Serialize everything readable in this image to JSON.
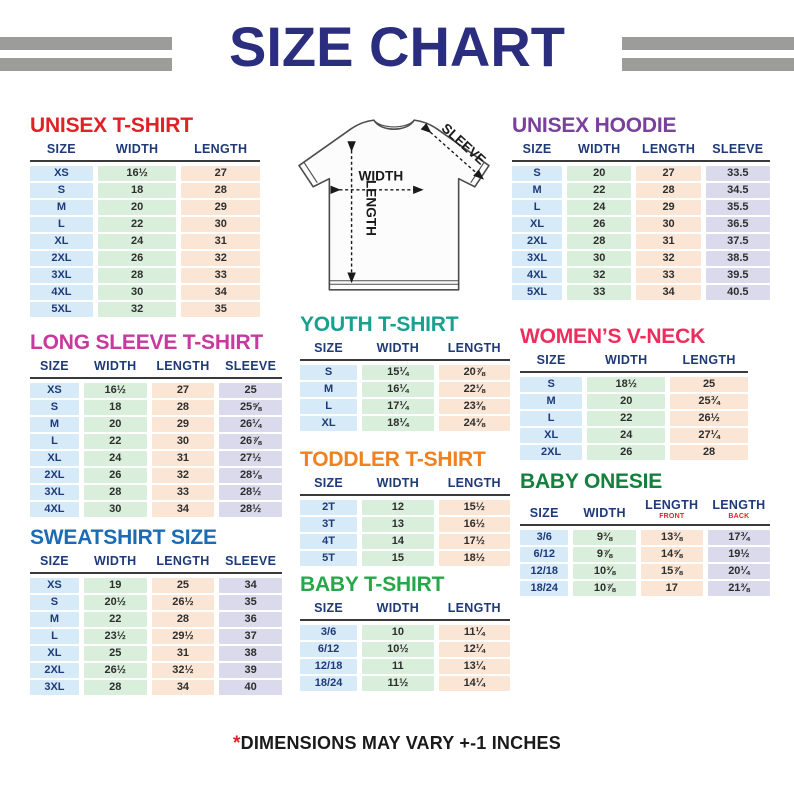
{
  "header": {
    "title": "SIZE CHART",
    "title_color": "#2b2d7e",
    "bar_color": "#9c9c9b"
  },
  "diagram": {
    "width_label": "WIDTH",
    "length_label": "LENGTH",
    "sleeve_label": "SLEEVE"
  },
  "palette": {
    "title_color": "#2b2d7e",
    "bar_color": "#9c9c9b",
    "header_text": "#1e3a78",
    "value_text": "#2e2e2e",
    "size_col_bg": "#d7eaf8",
    "width_col_bg": "#d9efdb",
    "length_col_bg": "#fbe6d6",
    "sleeve_col_bg": "#dbdaec"
  },
  "tables": [
    {
      "id": "unisex-tshirt",
      "title": "UNISEX T-SHIRT",
      "title_color": "#e02227",
      "columns": [
        "SIZE",
        "WIDTH",
        "LENGTH"
      ],
      "rows": [
        [
          "XS",
          "16½",
          "27"
        ],
        [
          "S",
          "18",
          "28"
        ],
        [
          "M",
          "20",
          "29"
        ],
        [
          "L",
          "22",
          "30"
        ],
        [
          "XL",
          "24",
          "31"
        ],
        [
          "2XL",
          "26",
          "32"
        ],
        [
          "3XL",
          "28",
          "33"
        ],
        [
          "4XL",
          "30",
          "34"
        ],
        [
          "5XL",
          "32",
          "35"
        ]
      ]
    },
    {
      "id": "long-sleeve-tshirt",
      "title": "LONG SLEEVE T-SHIRT",
      "title_color": "#c8399e",
      "columns": [
        "SIZE",
        "WIDTH",
        "LENGTH",
        "SLEEVE"
      ],
      "rows": [
        [
          "XS",
          "16½",
          "27",
          "25"
        ],
        [
          "S",
          "18",
          "28",
          "25⅝"
        ],
        [
          "M",
          "20",
          "29",
          "26¼"
        ],
        [
          "L",
          "22",
          "30",
          "26⅞"
        ],
        [
          "XL",
          "24",
          "31",
          "27½"
        ],
        [
          "2XL",
          "26",
          "32",
          "28⅛"
        ],
        [
          "3XL",
          "28",
          "33",
          "28½"
        ],
        [
          "4XL",
          "30",
          "34",
          "28½"
        ]
      ]
    },
    {
      "id": "sweatshirt-size",
      "title": "SWEATSHIRT SIZE",
      "title_color": "#1b6cb5",
      "columns": [
        "SIZE",
        "WIDTH",
        "LENGTH",
        "SLEEVE"
      ],
      "rows": [
        [
          "XS",
          "19",
          "25",
          "34"
        ],
        [
          "S",
          "20½",
          "26½",
          "35"
        ],
        [
          "M",
          "22",
          "28",
          "36"
        ],
        [
          "L",
          "23½",
          "29½",
          "37"
        ],
        [
          "XL",
          "25",
          "31",
          "38"
        ],
        [
          "2XL",
          "26½",
          "32½",
          "39"
        ],
        [
          "3XL",
          "28",
          "34",
          "40"
        ]
      ]
    },
    {
      "id": "youth-tshirt",
      "title": "YOUTH T-SHIRT",
      "title_color": "#16a28f",
      "columns": [
        "SIZE",
        "WIDTH",
        "LENGTH"
      ],
      "rows": [
        [
          "S",
          "15¼",
          "20⅞"
        ],
        [
          "M",
          "16¼",
          "22⅛"
        ],
        [
          "L",
          "17¼",
          "23⅜"
        ],
        [
          "XL",
          "18¼",
          "24⅜"
        ]
      ]
    },
    {
      "id": "toddler-tshirt",
      "title": "TODDLER T-SHIRT",
      "title_color": "#f08121",
      "columns": [
        "SIZE",
        "WIDTH",
        "LENGTH"
      ],
      "rows": [
        [
          "2T",
          "12",
          "15½"
        ],
        [
          "3T",
          "13",
          "16½"
        ],
        [
          "4T",
          "14",
          "17½"
        ],
        [
          "5T",
          "15",
          "18½"
        ]
      ]
    },
    {
      "id": "baby-tshirt",
      "title": "BABY T-SHIRT",
      "title_color": "#27a74a",
      "columns": [
        "SIZE",
        "WIDTH",
        "LENGTH"
      ],
      "rows": [
        [
          "3/6",
          "10",
          "11¼"
        ],
        [
          "6/12",
          "10½",
          "12¼"
        ],
        [
          "12/18",
          "11",
          "13¼"
        ],
        [
          "18/24",
          "11½",
          "14¼"
        ]
      ]
    },
    {
      "id": "unisex-hoodie",
      "title": "UNISEX HOODIE",
      "title_color": "#7b3f9d",
      "columns": [
        "SIZE",
        "WIDTH",
        "LENGTH",
        "SLEEVE"
      ],
      "rows": [
        [
          "S",
          "20",
          "27",
          "33.5"
        ],
        [
          "M",
          "22",
          "28",
          "34.5"
        ],
        [
          "L",
          "24",
          "29",
          "35.5"
        ],
        [
          "XL",
          "26",
          "30",
          "36.5"
        ],
        [
          "2XL",
          "28",
          "31",
          "37.5"
        ],
        [
          "3XL",
          "30",
          "32",
          "38.5"
        ],
        [
          "4XL",
          "32",
          "33",
          "39.5"
        ],
        [
          "5XL",
          "33",
          "34",
          "40.5"
        ]
      ]
    },
    {
      "id": "womens-vneck",
      "title": "WOMEN’S V-NECK",
      "title_color": "#ee2d5d",
      "columns": [
        "SIZE",
        "WIDTH",
        "LENGTH"
      ],
      "rows": [
        [
          "S",
          "18½",
          "25"
        ],
        [
          "M",
          "20",
          "25¾"
        ],
        [
          "L",
          "22",
          "26½"
        ],
        [
          "XL",
          "24",
          "27¼"
        ],
        [
          "2XL",
          "26",
          "28"
        ]
      ]
    },
    {
      "id": "baby-onesie",
      "title": "BABY ONESIE",
      "title_color": "#157f3d",
      "columns": [
        "SIZE",
        "WIDTH",
        {
          "label": "LENGTH",
          "sub": "FRONT"
        },
        {
          "label": "LENGTH",
          "sub": "BACK"
        }
      ],
      "rows": [
        [
          "3/6",
          "9⅜",
          "13⅜",
          "17¾"
        ],
        [
          "6/12",
          "9⅞",
          "14⅝",
          "19½"
        ],
        [
          "12/18",
          "10⅜",
          "15⅞",
          "20¼"
        ],
        [
          "18/24",
          "10⅞",
          "17",
          "21⅜"
        ]
      ]
    }
  ],
  "footer": {
    "asterisk": "*",
    "text": "DIMENSIONS MAY VARY",
    "tolerance": "+-1",
    "unit": "INCHES"
  }
}
